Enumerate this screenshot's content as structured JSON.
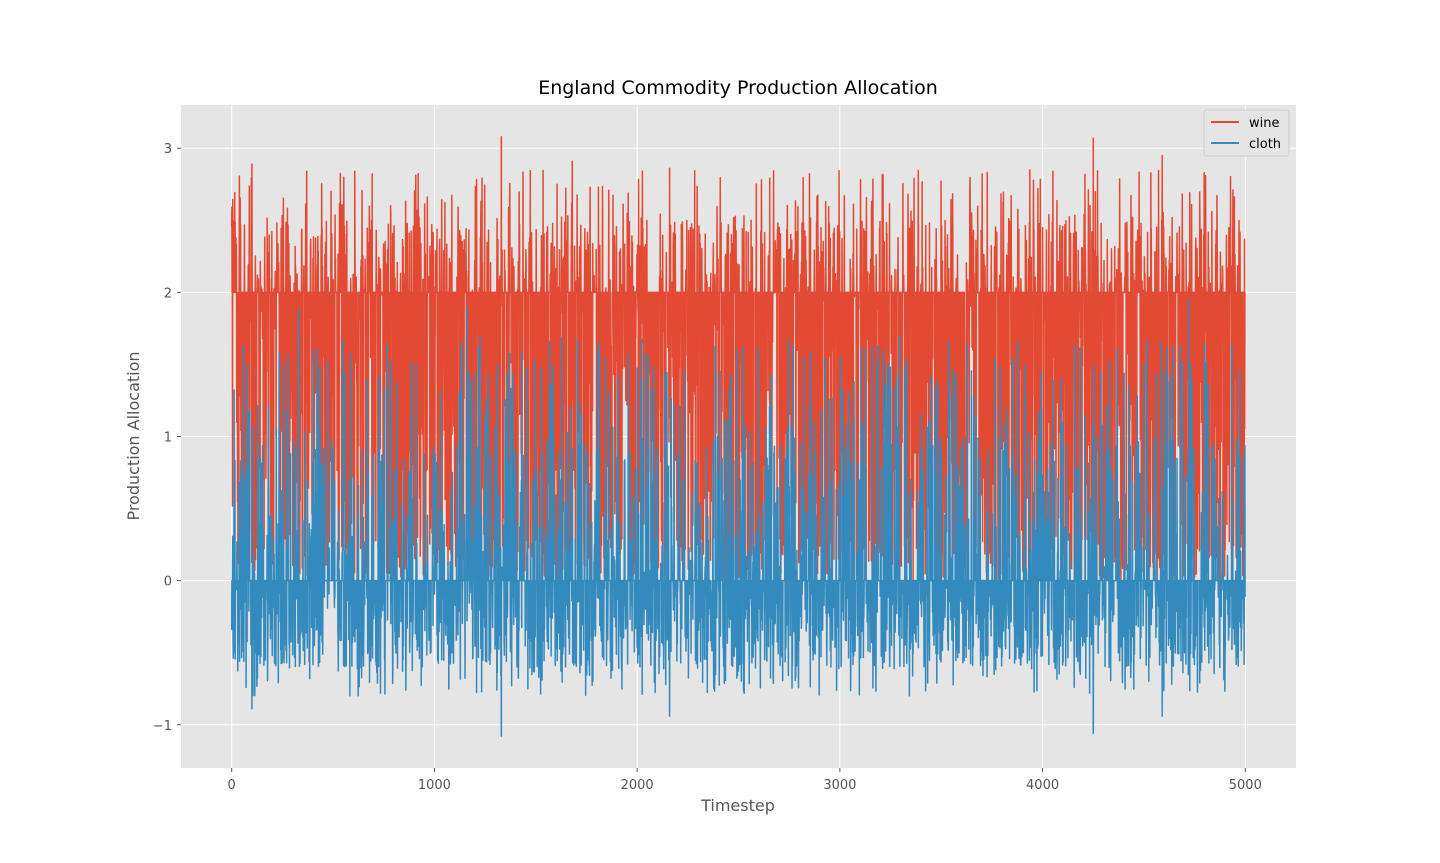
{
  "chart_data": {
    "type": "line",
    "title": "England Commodity Production Allocation",
    "xlabel": "Timestep",
    "ylabel": "Production Allocation",
    "xlim": [
      -250,
      5250
    ],
    "ylim": [
      -1.3,
      3.3
    ],
    "xticks": [
      0,
      1000,
      2000,
      3000,
      4000,
      5000
    ],
    "yticks": [
      -1,
      0,
      1,
      2,
      3
    ],
    "ytick_labels": [
      "−1",
      "0",
      "1",
      "2",
      "3"
    ],
    "grid": true,
    "legend_position": "top-right",
    "n_points": 5000,
    "series": [
      {
        "name": "wine",
        "color": "#E24A33",
        "summary": "Dense noisy oscillation mostly between 0 and 2, with frequent spikes above 2 up to about 3.08.",
        "min": 0.0,
        "max": 3.08,
        "peaks": [
          {
            "x": 100,
            "y": 2.89
          },
          {
            "x": 370,
            "y": 2.84
          },
          {
            "x": 1330,
            "y": 3.08
          },
          {
            "x": 1680,
            "y": 2.91
          },
          {
            "x": 2160,
            "y": 2.86
          },
          {
            "x": 4250,
            "y": 3.07
          },
          {
            "x": 4590,
            "y": 2.95
          }
        ]
      },
      {
        "name": "cloth",
        "color": "#348ABD",
        "summary": "Dense noisy oscillation mostly between -0.6 and 1, with occasional spikes up to about 1.95 and dips down to about -1.08.",
        "min": -1.08,
        "max": 1.95,
        "peaks": [
          {
            "x": 330,
            "y": 1.89
          },
          {
            "x": 1160,
            "y": 1.9
          },
          {
            "x": 4720,
            "y": 1.95
          }
        ],
        "troughs": [
          {
            "x": 100,
            "y": -0.89
          },
          {
            "x": 1330,
            "y": -1.08
          },
          {
            "x": 2160,
            "y": -0.94
          },
          {
            "x": 4250,
            "y": -1.06
          },
          {
            "x": 4590,
            "y": -0.94
          }
        ]
      }
    ]
  }
}
